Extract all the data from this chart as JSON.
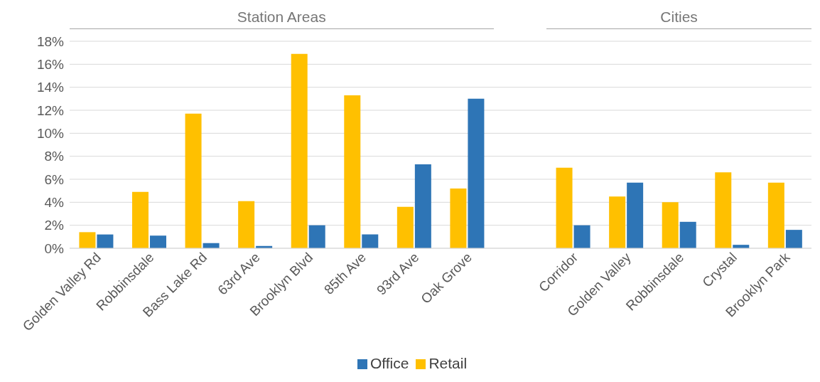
{
  "chart_data": {
    "type": "bar",
    "categories": [
      "Golden Valley Rd",
      "Robbinsdale",
      "Bass Lake Rd",
      "63rd Ave",
      "Brooklyn Blvd",
      "85th Ave",
      "93rd Ave",
      "Oak Grove",
      null,
      "Corridor",
      "Golden Valley",
      "Robbinsdale",
      "Crystal",
      "Brooklyn Park"
    ],
    "series": [
      {
        "name": "Retail",
        "color": "#ffc000",
        "values": [
          1.4,
          4.9,
          11.7,
          4.1,
          16.9,
          13.3,
          3.6,
          5.2,
          null,
          7.0,
          4.5,
          4.0,
          6.6,
          5.7
        ]
      },
      {
        "name": "Office",
        "color": "#2e75b6",
        "values": [
          1.2,
          1.1,
          0.45,
          0.2,
          2.0,
          1.2,
          7.3,
          13.0,
          null,
          2.0,
          5.7,
          2.3,
          0.3,
          1.6
        ]
      }
    ],
    "ylim": [
      0,
      18
    ],
    "yticks": [
      {
        "value": 0,
        "label": "0%"
      },
      {
        "value": 2,
        "label": "2%"
      },
      {
        "value": 4,
        "label": "4%"
      },
      {
        "value": 6,
        "label": "6%"
      },
      {
        "value": 8,
        "label": "8%"
      },
      {
        "value": 10,
        "label": "10%"
      },
      {
        "value": 12,
        "label": "12%"
      },
      {
        "value": 14,
        "label": "14%"
      },
      {
        "value": 16,
        "label": "16%"
      },
      {
        "value": 18,
        "label": "18%"
      }
    ],
    "grid": "y",
    "legend": "bottom",
    "annotations": [
      "Station Areas",
      "Cities"
    ]
  }
}
